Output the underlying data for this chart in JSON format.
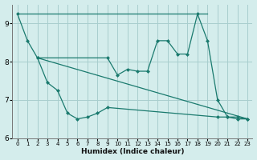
{
  "background_color": "#d4edec",
  "grid_color": "#a8cece",
  "line_color": "#1a7a6e",
  "xlabel": "Humidex (Indice chaleur)",
  "xlim": [
    -0.5,
    23.5
  ],
  "ylim": [
    6,
    9.5
  ],
  "yticks": [
    6,
    7,
    8,
    9
  ],
  "xticks": [
    0,
    1,
    2,
    3,
    4,
    5,
    6,
    7,
    8,
    9,
    10,
    11,
    12,
    13,
    14,
    15,
    16,
    17,
    18,
    19,
    20,
    21,
    22,
    23
  ],
  "line_top_diagonal": {
    "x": [
      0,
      19
    ],
    "y": [
      9.25,
      9.25
    ]
  },
  "line_bottom_diagonal": {
    "x": [
      2,
      23
    ],
    "y": [
      8.1,
      6.5
    ]
  },
  "line_upper_wave": {
    "x": [
      0,
      1,
      2,
      9,
      10,
      11,
      12,
      13,
      14,
      15,
      16,
      17,
      18,
      19,
      20,
      21,
      22,
      23
    ],
    "y": [
      9.25,
      8.55,
      8.1,
      8.1,
      7.65,
      7.8,
      7.75,
      7.75,
      8.55,
      8.55,
      8.2,
      8.2,
      9.25,
      8.55,
      7.0,
      6.55,
      6.5,
      6.5
    ]
  },
  "line_lower_wave": {
    "x": [
      2,
      3,
      4,
      5,
      6,
      7,
      8,
      9,
      20,
      21,
      22,
      23
    ],
    "y": [
      8.1,
      7.45,
      7.25,
      6.65,
      6.5,
      6.55,
      6.65,
      6.8,
      6.55,
      6.55,
      6.55,
      6.5
    ]
  }
}
